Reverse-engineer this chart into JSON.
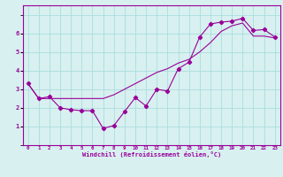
{
  "line1_x": [
    0,
    1,
    2,
    3,
    4,
    5,
    6,
    7,
    8,
    9,
    10,
    11,
    12,
    13,
    14,
    15,
    16,
    17,
    18,
    19,
    20,
    21,
    22,
    23
  ],
  "line1_y": [
    3.3,
    2.5,
    2.6,
    2.0,
    1.9,
    1.85,
    1.85,
    0.9,
    1.05,
    1.8,
    2.55,
    2.1,
    3.0,
    2.9,
    4.1,
    4.45,
    5.8,
    6.5,
    6.6,
    6.65,
    6.8,
    6.15,
    6.2,
    5.8
  ],
  "line2_x": [
    0,
    1,
    2,
    3,
    4,
    5,
    6,
    7,
    8,
    9,
    10,
    11,
    12,
    13,
    14,
    15,
    16,
    17,
    18,
    19,
    20,
    21,
    22,
    23
  ],
  "line2_y": [
    3.3,
    2.5,
    2.5,
    2.5,
    2.5,
    2.5,
    2.5,
    2.5,
    2.7,
    3.0,
    3.3,
    3.6,
    3.9,
    4.1,
    4.4,
    4.6,
    5.0,
    5.5,
    6.1,
    6.4,
    6.55,
    5.85,
    5.85,
    5.75
  ],
  "line_color": "#990099",
  "bg_color": "#d8f0f0",
  "grid_color": "#aadddd",
  "xlabel": "Windchill (Refroidissement éolien,°C)",
  "xlim": [
    0,
    23
  ],
  "ylim": [
    0,
    7
  ],
  "xtick_vals": [
    0,
    1,
    2,
    3,
    4,
    5,
    6,
    7,
    8,
    9,
    10,
    11,
    12,
    13,
    14,
    15,
    16,
    17,
    18,
    19,
    20,
    21,
    22,
    23
  ],
  "xtick_labels": [
    "0",
    "1",
    "2",
    "3",
    "4",
    "5",
    "6",
    "7",
    "8",
    "9",
    "10",
    "11",
    "12",
    "13",
    "14",
    "15",
    "16",
    "17",
    "18",
    "19",
    "20",
    "21",
    "22",
    "23"
  ],
  "ytick_vals": [
    1,
    2,
    3,
    4,
    5,
    6
  ],
  "ytick_labels": [
    "1",
    "2",
    "3",
    "4",
    "5",
    "6"
  ]
}
